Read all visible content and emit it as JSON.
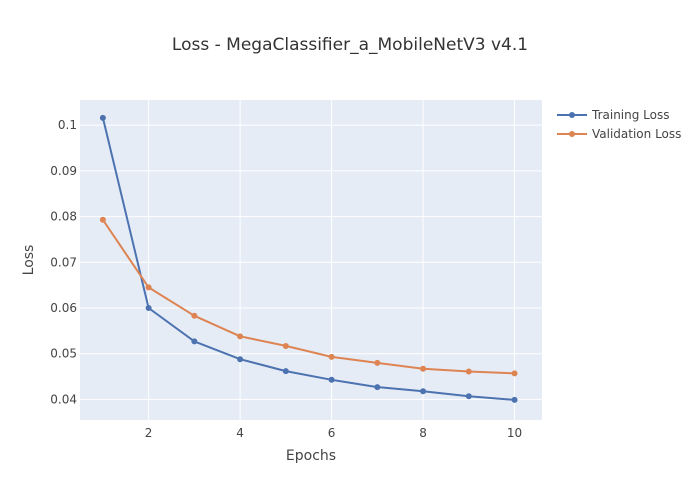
{
  "chart_data": {
    "type": "line",
    "title": "Loss - MegaClassifier_a_MobileNetV3 v4.1",
    "xlabel": "Epochs",
    "ylabel": "Loss",
    "x": [
      1,
      2,
      3,
      4,
      5,
      6,
      7,
      8,
      9,
      10
    ],
    "x_ticks": [
      2,
      4,
      6,
      8,
      10
    ],
    "y_ticks": [
      0.04,
      0.05,
      0.06,
      0.07,
      0.08,
      0.09,
      0.1
    ],
    "xlim": [
      0.5,
      10.6
    ],
    "ylim": [
      0.0355,
      0.1055
    ],
    "grid": true,
    "legend_position": "top-right, outside plot",
    "background_color": "#e5ecf6",
    "series": [
      {
        "name": "Training Loss",
        "color": "#4c72b0",
        "values": [
          0.1016,
          0.06,
          0.0527,
          0.0488,
          0.0462,
          0.0443,
          0.0427,
          0.0418,
          0.0407,
          0.0399
        ]
      },
      {
        "name": "Validation Loss",
        "color": "#dd8452",
        "values": [
          0.0793,
          0.0645,
          0.0583,
          0.0538,
          0.0517,
          0.0493,
          0.048,
          0.0467,
          0.0461,
          0.0457
        ]
      }
    ]
  }
}
